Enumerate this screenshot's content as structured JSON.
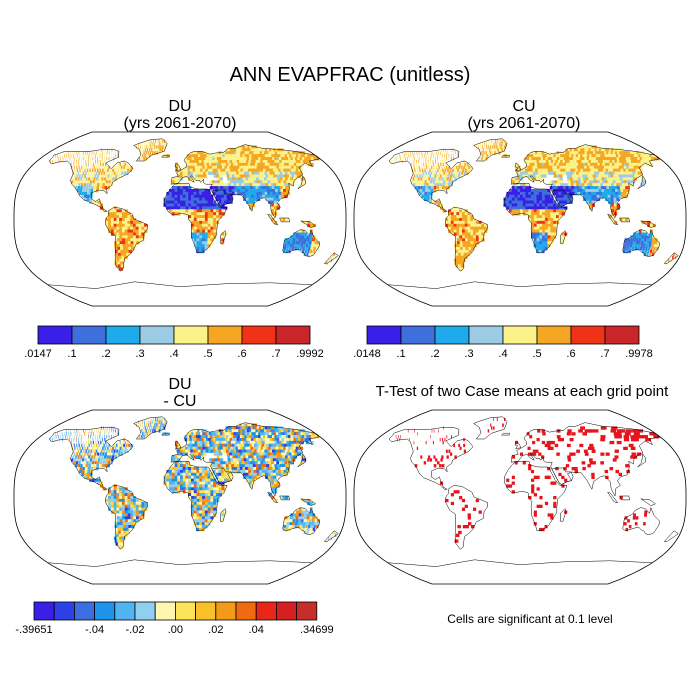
{
  "title": "ANN EVAPFRAC (unitless)",
  "panels": [
    {
      "id": "du",
      "title_lines": [
        "DU",
        "(yrs 2061-2070)"
      ]
    },
    {
      "id": "cu",
      "title_lines": [
        "CU",
        "(yrs 2061-2070)"
      ]
    },
    {
      "id": "diff",
      "title_lines": [
        "DU",
        "- CU"
      ]
    },
    {
      "id": "ttest",
      "title_lines": [
        "T-Test of two Case means at each grid point"
      ]
    }
  ],
  "colorbars": {
    "du": {
      "colors": [
        "#3a1fe6",
        "#3f6fdc",
        "#1eaaeb",
        "#9ccbe6",
        "#fbf28a",
        "#f5a623",
        "#f03217",
        "#c9262a"
      ],
      "labels": [
        ".0147",
        ".1",
        ".2",
        ".3",
        ".4",
        ".5",
        ".6",
        ".7",
        ".9992"
      ]
    },
    "cu": {
      "colors": [
        "#3a1fe6",
        "#3f6fdc",
        "#1eaaeb",
        "#9ccbe6",
        "#fbf28a",
        "#f5a623",
        "#f03217",
        "#c9262a"
      ],
      "labels": [
        ".0148",
        ".1",
        ".2",
        ".3",
        ".4",
        ".5",
        ".6",
        ".7",
        ".9978"
      ]
    },
    "diff": {
      "colors": [
        "#3a1fe6",
        "#2f3fe8",
        "#3c6ee0",
        "#1f93ea",
        "#4fb4ef",
        "#8fd0f0",
        "#fff7b0",
        "#fbe35a",
        "#f8c12a",
        "#f39a18",
        "#f06a10",
        "#e8261a",
        "#d42020",
        "#c72d2d"
      ],
      "labels": [
        "-.39651",
        "-.04",
        "-.02",
        ".00",
        ".02",
        ".04",
        ".34699"
      ],
      "label_boxes": [
        0,
        3,
        5,
        7,
        9,
        11,
        14
      ]
    }
  },
  "note": "Cells are significant at 0.1 level",
  "colors": {
    "land_outline": "#000000",
    "significant": "#e8141c"
  }
}
